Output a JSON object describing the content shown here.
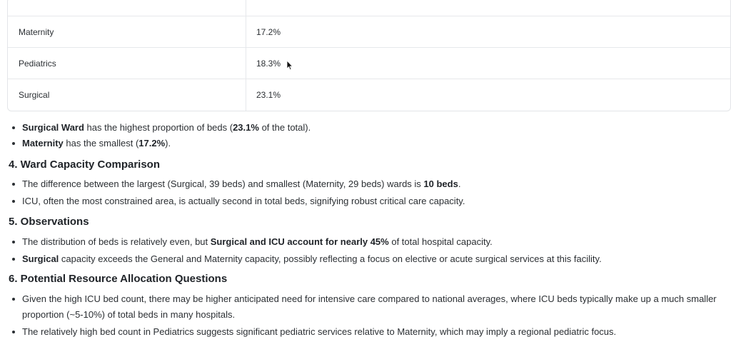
{
  "table": {
    "rows": [
      {
        "ward": "Maternity",
        "share": "17.2%"
      },
      {
        "ward": "Pediatrics",
        "share": "18.3%"
      },
      {
        "ward": "Surgical",
        "share": "23.1%"
      }
    ]
  },
  "summary": {
    "b1": {
      "s1": "Surgical Ward",
      "t1": " has the highest proportion of beds (",
      "s2": "23.1%",
      "t2": " of the total)."
    },
    "b2": {
      "s1": "Maternity",
      "t1": " has the smallest (",
      "s2": "17.2%",
      "t2": ")."
    }
  },
  "section4": {
    "heading": "4. Ward Capacity Comparison",
    "b1": {
      "t1": "The difference between the largest (Surgical, 39 beds) and smallest (Maternity, 29 beds) wards is ",
      "s1": "10 beds",
      "t2": "."
    },
    "b2": {
      "t1": "ICU, often the most constrained area, is actually second in total beds, signifying robust critical care capacity."
    }
  },
  "section5": {
    "heading": "5. Observations",
    "b1": {
      "t1": "The distribution of beds is relatively even, but ",
      "s1": "Surgical and ICU account for nearly 45%",
      "t2": " of total hospital capacity."
    },
    "b2": {
      "s1": "Surgical",
      "t1": " capacity exceeds the General and Maternity capacity, possibly reflecting a focus on elective or acute surgical services at this facility."
    }
  },
  "section6": {
    "heading": "6. Potential Resource Allocation Questions",
    "b1": {
      "t1": "Given the high ICU bed count, there may be higher anticipated need for intensive care compared to national averages, where ICU beds typically make up a much smaller proportion (~5-10%) of total beds in many hospitals."
    },
    "b2": {
      "t1": "The relatively high bed count in Pediatrics suggests significant pediatric services relative to Maternity, which may imply a regional pediatric focus."
    }
  }
}
